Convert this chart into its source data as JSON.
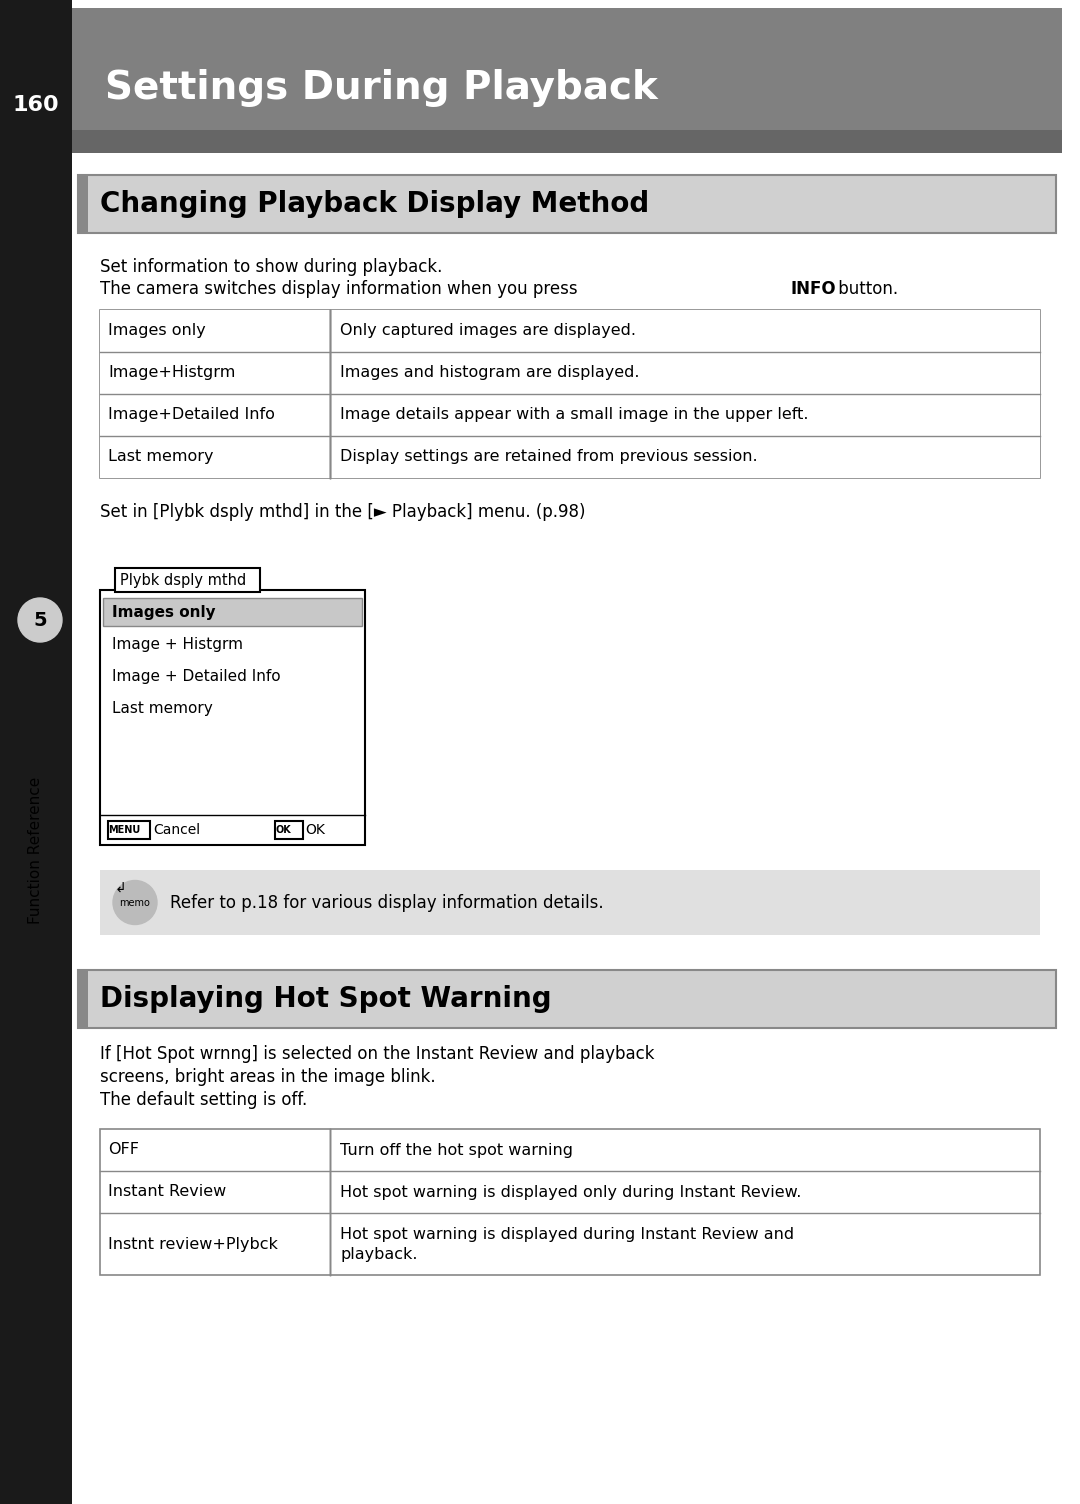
{
  "page_number": "160",
  "main_title": "Settings During Playback",
  "section1_title": "Changing Playback Display Method",
  "section1_intro": [
    "Set information to show during playback.",
    "The camera switches display information when you press ⁠​INFO​⁠ button."
  ],
  "section1_intro_bold_word": "INFO",
  "table1": [
    [
      "Images only",
      "Only captured images are displayed."
    ],
    [
      "Image+Histgrm",
      "Images and histogram are displayed."
    ],
    [
      "Image+Detailed Info",
      "Image details appear with a small image in the upper left."
    ],
    [
      "Last memory",
      "Display settings are retained from previous session."
    ]
  ],
  "section1_note": "Set in [Plybk dsply mthd] in the [► Playback] menu. (p.98)",
  "menu_title": "Plybk dsply mthd",
  "menu_items": [
    "Images only",
    "Image + Histgrm",
    "Image + Detailed Info",
    "Last memory"
  ],
  "menu_selected": 0,
  "memo_text": "Refer to p.18 for various display information details.",
  "sidebar_label": "Function Reference",
  "sidebar_number": "5",
  "section2_title": "Displaying Hot Spot Warning",
  "section2_intro": [
    "If [Hot Spot wrnng] is selected on the Instant Review and playback",
    "screens, bright areas in the image blink.",
    "The default setting is off."
  ],
  "table2": [
    [
      "OFF",
      "Turn off the hot spot warning"
    ],
    [
      "Instant Review",
      "Hot spot warning is displayed only during Instant Review."
    ],
    [
      "Instnt review+Plybck",
      "Hot spot warning is displayed during Instant Review and\nplayback."
    ]
  ],
  "bg_color": "#ffffff",
  "header_bg": "#808080",
  "header_text_color": "#ffffff",
  "left_bar_color": "#1a1a1a",
  "section_header_bg": "#d0d0d0",
  "section_header_border": "#888888",
  "table_border": "#888888",
  "menu_selected_bg": "#c8c8c8",
  "memo_bg": "#e0e0e0",
  "sidebar_bg": "#cccccc"
}
